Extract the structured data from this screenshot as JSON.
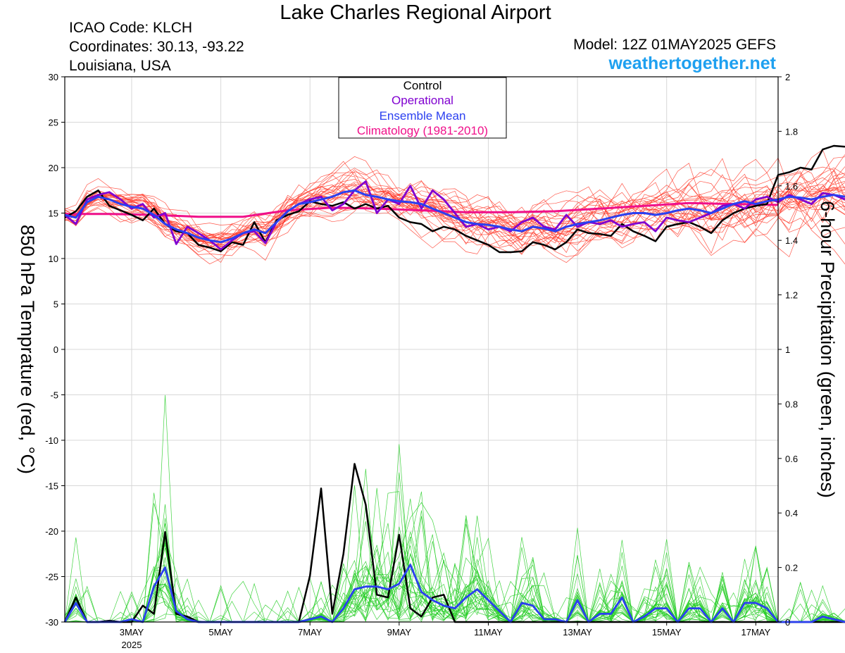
{
  "header": {
    "title": "Lake Charles Regional Airport",
    "icao": "ICAO Code: KLCH",
    "coordinates": "Coordinates: 30.13, -93.22",
    "region": "Louisiana, USA",
    "model": "Model: 12Z 01MAY2025 GEFS",
    "site": "weathertogether.net"
  },
  "colors": {
    "control": "#000000",
    "operational": "#8000d0",
    "ensemble_mean": "#2a3ff0",
    "climatology": "#f0108a",
    "temp_members": "#ff3a2a",
    "precip_members": "#22cc22",
    "site": "#1ea0f0"
  },
  "chart_data": {
    "type": "line",
    "ylabel": "850 hPa Temprature (red, °C)",
    "ylabel_right": "6-hour Precipitation (green, inches)",
    "ylim": [
      -30,
      30
    ],
    "ylim_right": [
      0,
      2
    ],
    "yticks": [
      "30",
      "25",
      "20",
      "15",
      "10",
      "5",
      "0",
      "-5",
      "-10",
      "-15",
      "-20",
      "-25",
      "-30"
    ],
    "yticks_right": [
      "2",
      "1.8",
      "1.6",
      "1.4",
      "1.2",
      "1",
      "0.8",
      "0.6",
      "0.4",
      "0.2",
      "0"
    ],
    "xlim": [
      "2025-05-01T12:00",
      "2025-05-17T12:00"
    ],
    "xticks": [
      {
        "date": "2025-05-03",
        "label": "3MAY",
        "sub": "2025"
      },
      {
        "date": "2025-05-05",
        "label": "5MAY",
        "sub": ""
      },
      {
        "date": "2025-05-07",
        "label": "7MAY",
        "sub": ""
      },
      {
        "date": "2025-05-09",
        "label": "9MAY",
        "sub": ""
      },
      {
        "date": "2025-05-11",
        "label": "11MAY",
        "sub": ""
      },
      {
        "date": "2025-05-13",
        "label": "13MAY",
        "sub": ""
      },
      {
        "date": "2025-05-15",
        "label": "15MAY",
        "sub": ""
      },
      {
        "date": "2025-05-17",
        "label": "17MAY",
        "sub": ""
      }
    ],
    "legend": {
      "placement": "top-center",
      "entries": [
        {
          "label": "Control",
          "color": "#000000"
        },
        {
          "label": "Operational",
          "color": "#8000d0"
        },
        {
          "label": "Ensemble Mean",
          "color": "#2a3ff0"
        },
        {
          "label": "Climatology (1981-2010)",
          "color": "#f0108a"
        }
      ]
    },
    "series": [
      {
        "key": "control",
        "name": "Control",
        "axis": "left",
        "step_hours": 6,
        "start": "2025-05-01T12:00",
        "values": [
          14.5,
          15.2,
          16.8,
          17.5,
          15.8,
          15.3,
          14.8,
          14.2,
          15.5,
          13.8,
          13.0,
          12.8,
          11.5,
          11.2,
          10.8,
          11.8,
          11.5,
          14.0,
          11.8,
          14.2,
          14.8,
          15.2,
          16.3,
          16.0,
          15.8,
          16.2,
          15.5,
          16.0,
          15.5,
          15.8,
          14.5,
          14.0,
          13.8,
          13.0,
          13.5,
          13.2,
          12.5,
          12.0,
          11.5,
          10.7,
          10.7,
          10.8,
          11.8,
          11.5,
          11.0,
          11.8,
          13.2,
          12.8,
          12.7,
          12.5,
          13.8,
          13.0,
          12.5,
          11.9,
          13.5,
          13.8,
          14.0,
          13.5,
          12.8,
          14.2,
          15.0,
          15.5,
          15.8,
          16.0,
          19.2,
          19.5,
          20.0,
          19.8,
          22.0,
          22.4,
          22.3
        ]
      },
      {
        "key": "operational",
        "name": "Operational",
        "axis": "left",
        "step_hours": 6,
        "start": "2025-05-01T12:00",
        "values": [
          14.8,
          13.8,
          16.5,
          17.0,
          17.3,
          16.5,
          15.5,
          16.0,
          14.5,
          15.0,
          11.6,
          13.5,
          12.8,
          12.0,
          11.0,
          12.0,
          12.8,
          13.0,
          11.7,
          14.0,
          15.2,
          16.0,
          16.5,
          16.8,
          15.3,
          16.0,
          17.5,
          18.5,
          15.0,
          16.5,
          16.0,
          18.0,
          15.5,
          17.5,
          16.5,
          15.0,
          13.5,
          13.8,
          13.2,
          13.5,
          13.0,
          14.0,
          14.5,
          13.5,
          13.2,
          14.8,
          13.5,
          14.0,
          13.8,
          14.2,
          13.5,
          13.8,
          14.0,
          13.0,
          14.5,
          14.2,
          14.0,
          14.5,
          15.0,
          15.8,
          16.0,
          15.5,
          16.5,
          16.8,
          16.2,
          17.0,
          16.5,
          16.0,
          17.2,
          17.0,
          16.5
        ]
      },
      {
        "key": "ensemble_mean",
        "name": "Ensemble Mean",
        "axis": "left",
        "step_hours": 6,
        "start": "2025-05-01T12:00",
        "values": [
          14.8,
          14.5,
          16.2,
          16.8,
          16.5,
          16.0,
          15.7,
          15.5,
          14.8,
          13.8,
          13.2,
          12.8,
          12.3,
          12.0,
          11.8,
          12.2,
          12.8,
          13.2,
          12.8,
          14.0,
          15.2,
          16.0,
          16.2,
          16.5,
          16.8,
          17.3,
          17.5,
          17.0,
          16.8,
          16.5,
          16.3,
          16.2,
          16.0,
          15.5,
          15.0,
          14.5,
          14.0,
          13.8,
          13.7,
          13.5,
          13.2,
          13.0,
          13.5,
          13.3,
          13.0,
          13.5,
          13.8,
          14.0,
          14.2,
          14.5,
          14.8,
          15.0,
          15.0,
          14.8,
          15.0,
          15.3,
          15.5,
          15.3,
          15.0,
          15.5,
          16.0,
          16.3,
          16.0,
          16.3,
          16.5,
          16.8,
          16.7,
          16.5,
          16.8,
          17.0,
          16.8
        ]
      },
      {
        "key": "climatology",
        "name": "Climatology (1981-2010)",
        "axis": "left",
        "step_hours": 24,
        "start": "2025-05-01T12:00",
        "values": [
          14.9,
          14.9,
          14.8,
          14.6,
          14.6,
          15.3,
          15.6,
          15.5,
          15.3,
          15.1,
          15.1,
          15.2,
          15.5,
          15.8,
          16.1,
          16.0,
          15.9
        ]
      },
      {
        "key": "control_precip",
        "name": "Control",
        "axis": "right",
        "step_hours": 6,
        "start": "2025-05-01T12:00",
        "values": [
          0.0,
          0.09,
          0.0,
          0.0,
          0.005,
          0.0,
          0.0,
          0.06,
          0.03,
          0.33,
          0.03,
          0.02,
          0.0,
          0.0,
          0.0,
          0.0,
          0.0,
          0.0,
          0.0,
          0.0,
          0.0,
          0.0,
          0.17,
          0.49,
          0.03,
          0.25,
          0.58,
          0.43,
          0.1,
          0.09,
          0.32,
          0.05,
          0.02,
          0.09,
          0.1,
          0.0,
          0.0,
          0.0,
          0.0,
          0.0,
          0.0,
          0.0,
          0.0,
          0.0,
          0.0,
          0.0,
          0.0,
          0.0,
          0.0,
          0.0,
          0.0,
          0.0,
          0.0,
          0.0,
          0.0,
          0.0,
          0.0,
          0.0,
          0.0,
          0.0,
          0.0,
          0.0,
          0.0,
          0.0,
          0.0,
          0.0,
          0.0,
          0.0,
          0.0,
          0.0,
          0.0
        ]
      },
      {
        "key": "mean_precip",
        "name": "Ensemble Mean",
        "axis": "right",
        "step_hours": 6,
        "start": "2025-05-01T12:00",
        "values": [
          0.0,
          0.07,
          0.0,
          0.0,
          0.0,
          0.0,
          0.01,
          0.0,
          0.13,
          0.2,
          0.04,
          0.01,
          0.0,
          0.0,
          0.0,
          0.0,
          0.0,
          0.0,
          0.0,
          0.0,
          0.0,
          0.0,
          0.01,
          0.02,
          0.0,
          0.05,
          0.12,
          0.13,
          0.13,
          0.12,
          0.14,
          0.21,
          0.11,
          0.08,
          0.06,
          0.05,
          0.09,
          0.12,
          0.08,
          0.04,
          0.0,
          0.07,
          0.06,
          0.01,
          0.01,
          0.0,
          0.08,
          0.0,
          0.03,
          0.03,
          0.09,
          0.0,
          0.02,
          0.05,
          0.05,
          0.0,
          0.05,
          0.05,
          0.0,
          0.05,
          0.0,
          0.07,
          0.07,
          0.05,
          0.0,
          0.0,
          0.0,
          0.0,
          0.02,
          0.01,
          0.0
        ]
      }
    ]
  }
}
